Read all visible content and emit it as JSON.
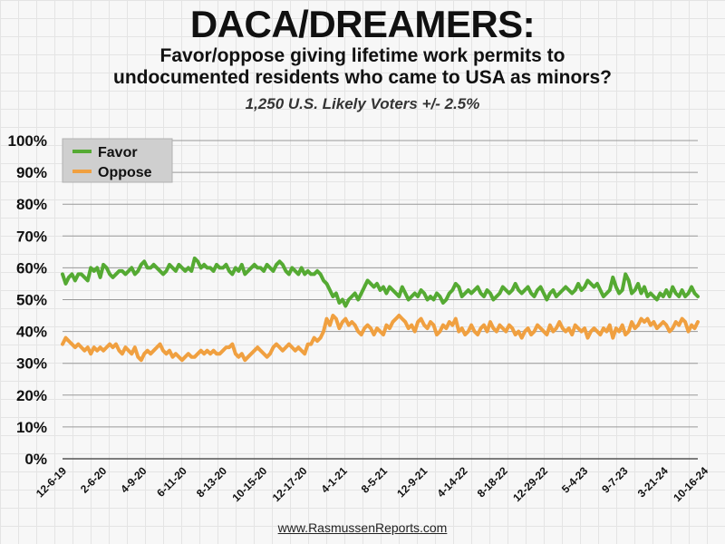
{
  "title": "DACA/DREAMERS:",
  "subtitle_line1": "Favor/oppose giving lifetime work permits to",
  "subtitle_line2": "undocumented residents who came to USA as minors?",
  "sample": "1,250 U.S. Likely Voters +/- 2.5%",
  "source": "www.RasmussenReports.com",
  "colors": {
    "favor": "#55aa33",
    "oppose": "#f0a040"
  },
  "chart_data": {
    "type": "line",
    "ylim": [
      0,
      100
    ],
    "yticks": [
      "0%",
      "10%",
      "20%",
      "30%",
      "40%",
      "50%",
      "60%",
      "70%",
      "80%",
      "90%",
      "100%"
    ],
    "xticks": [
      "12-6-19",
      "2-6-20",
      "4-9-20",
      "6-11-20",
      "8-13-20",
      "10-15-20",
      "12-17-20",
      "4-1-21",
      "8-5-21",
      "12-9-21",
      "4-14-22",
      "8-18-22",
      "12-29-22",
      "5-4-23",
      "9-7-23",
      "3-21-24",
      "10-16-24"
    ],
    "grid": true,
    "legend": "top-left",
    "series": [
      {
        "name": "Favor",
        "values": [
          58,
          55,
          57,
          58,
          56,
          58,
          58,
          57,
          56,
          60,
          59,
          60,
          57,
          61,
          60,
          58,
          57,
          58,
          59,
          59,
          58,
          59,
          60,
          58,
          59,
          61,
          62,
          60,
          60,
          61,
          60,
          59,
          58,
          59,
          61,
          60,
          59,
          61,
          60,
          59,
          60,
          59,
          63,
          62,
          60,
          61,
          60,
          60,
          59,
          61,
          60,
          60,
          61,
          59,
          58,
          60,
          59,
          61,
          58,
          59,
          60,
          61,
          60,
          60,
          59,
          61,
          60,
          59,
          61,
          62,
          61,
          59,
          58,
          60,
          59,
          58,
          60,
          58,
          59,
          58,
          58,
          59,
          58,
          56,
          55,
          53,
          51,
          52,
          49,
          50,
          48,
          50,
          51,
          52,
          50,
          52,
          54,
          56,
          55,
          54,
          55,
          53,
          54,
          52,
          54,
          53,
          52,
          51,
          54,
          52,
          50,
          51,
          52,
          51,
          53,
          52,
          50,
          51,
          50,
          52,
          51,
          49,
          50,
          52,
          53,
          55,
          54,
          51,
          52,
          53,
          52,
          53,
          54,
          52,
          51,
          53,
          52,
          50,
          51,
          52,
          54,
          53,
          52,
          53,
          55,
          53,
          52,
          53,
          54,
          52,
          51,
          53,
          54,
          52,
          50,
          52,
          53,
          51,
          52,
          53,
          54,
          53,
          52,
          53,
          55,
          53,
          54,
          56,
          55,
          54,
          55,
          53,
          51,
          52,
          53,
          57,
          54,
          52,
          53,
          58,
          56,
          52,
          53,
          55,
          52,
          54,
          51,
          52,
          51,
          50,
          52,
          51,
          53,
          51,
          54,
          52,
          51,
          53,
          51,
          52,
          54,
          52,
          51
        ]
      },
      {
        "name": "Oppose",
        "values": [
          36,
          38,
          37,
          36,
          35,
          36,
          35,
          34,
          35,
          33,
          35,
          34,
          35,
          34,
          35,
          36,
          35,
          36,
          34,
          33,
          35,
          34,
          33,
          35,
          32,
          31,
          33,
          34,
          33,
          34,
          35,
          36,
          34,
          33,
          34,
          32,
          33,
          32,
          31,
          32,
          33,
          32,
          32,
          33,
          34,
          33,
          34,
          33,
          34,
          33,
          33,
          34,
          35,
          35,
          36,
          33,
          32,
          33,
          31,
          32,
          33,
          34,
          35,
          34,
          33,
          32,
          33,
          35,
          36,
          35,
          34,
          35,
          36,
          35,
          34,
          35,
          34,
          33,
          36,
          36,
          38,
          37,
          38,
          40,
          44,
          42,
          45,
          44,
          41,
          43,
          44,
          42,
          43,
          42,
          40,
          39,
          41,
          42,
          41,
          39,
          41,
          40,
          39,
          42,
          41,
          43,
          44,
          45,
          44,
          43,
          41,
          42,
          40,
          43,
          44,
          42,
          41,
          43,
          42,
          39,
          40,
          42,
          41,
          43,
          42,
          44,
          40,
          41,
          39,
          40,
          42,
          40,
          39,
          41,
          42,
          40,
          43,
          41,
          40,
          42,
          41,
          40,
          42,
          41,
          39,
          40,
          38,
          40,
          41,
          39,
          40,
          42,
          41,
          40,
          39,
          42,
          40,
          41,
          43,
          41,
          40,
          41,
          39,
          42,
          41,
          40,
          41,
          38,
          40,
          41,
          40,
          39,
          41,
          40,
          42,
          38,
          41,
          40,
          42,
          39,
          40,
          43,
          41,
          42,
          44,
          43,
          44,
          42,
          43,
          41,
          42,
          43,
          42,
          40,
          41,
          43,
          42,
          44,
          43,
          40,
          42,
          41,
          43
        ]
      }
    ]
  }
}
